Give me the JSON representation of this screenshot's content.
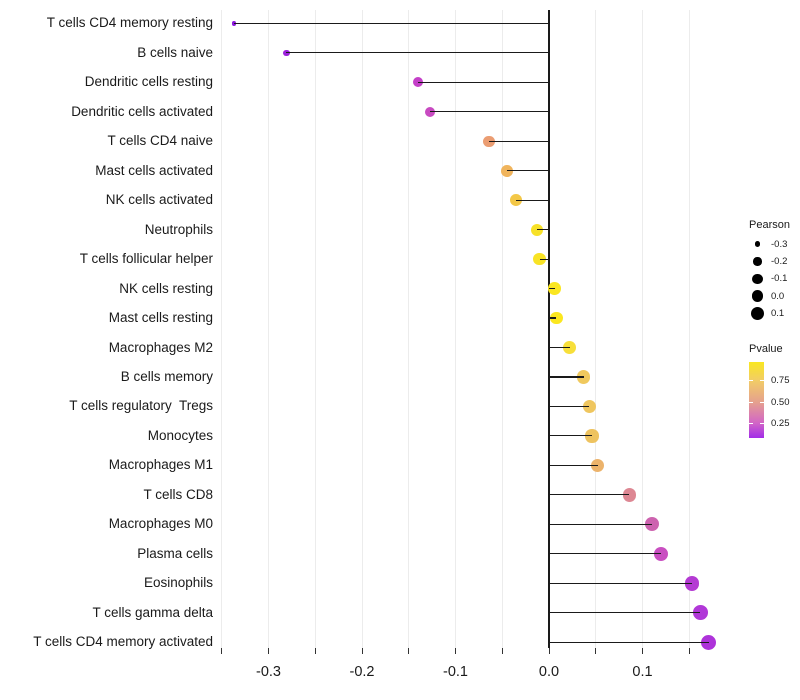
{
  "chart_data": {
    "type": "scatter",
    "variant": "lollipop",
    "title": "",
    "xlabel": "",
    "ylabel": "",
    "xlim": [
      -0.362,
      0.196
    ],
    "x_tick_labels": [
      "-0.3",
      "-0.2",
      "-0.1",
      "0.0",
      "0.1"
    ],
    "x_tick_values": [
      -0.3,
      -0.2,
      -0.1,
      0.0,
      0.1
    ],
    "x_gridline_values": [
      -0.35,
      -0.3,
      -0.25,
      -0.2,
      -0.15,
      -0.1,
      -0.05,
      0.0,
      0.05,
      0.1,
      0.15
    ],
    "grid": "vertical-only",
    "zero_line": 0.0,
    "points": [
      {
        "label": "T cells CD4 memory resting",
        "pearson": -0.337,
        "pvalue": 0.03,
        "color": "#8b17dd"
      },
      {
        "label": "B cells naive",
        "pearson": -0.281,
        "pvalue": 0.06,
        "color": "#9c20dc"
      },
      {
        "label": "Dendritic cells resting",
        "pearson": -0.14,
        "pvalue": 0.17,
        "color": "#c43fc8"
      },
      {
        "label": "Dendritic cells activated",
        "pearson": -0.127,
        "pvalue": 0.19,
        "color": "#c84ac1"
      },
      {
        "label": "T cells CD4 naive",
        "pearson": -0.064,
        "pvalue": 0.55,
        "color": "#eb9d72"
      },
      {
        "label": "Mast cells activated",
        "pearson": -0.045,
        "pvalue": 0.65,
        "color": "#f0b45c"
      },
      {
        "label": "NK cells activated",
        "pearson": -0.035,
        "pvalue": 0.74,
        "color": "#f3c747"
      },
      {
        "label": "Neutrophils",
        "pearson": -0.013,
        "pvalue": 0.88,
        "color": "#f7e128"
      },
      {
        "label": "T cells follicular helper",
        "pearson": -0.01,
        "pvalue": 0.9,
        "color": "#f8e325"
      },
      {
        "label": "NK cells resting",
        "pearson": 0.006,
        "pvalue": 0.93,
        "color": "#fae621"
      },
      {
        "label": "Mast cells resting",
        "pearson": 0.008,
        "pvalue": 0.95,
        "color": "#fbe71f"
      },
      {
        "label": "Macrophages M2",
        "pearson": 0.022,
        "pvalue": 0.86,
        "color": "#f7df3a"
      },
      {
        "label": "B cells memory",
        "pearson": 0.037,
        "pvalue": 0.75,
        "color": "#f0c95e"
      },
      {
        "label": "T cells regulatory  Tregs",
        "pearson": 0.043,
        "pvalue": 0.74,
        "color": "#efc65f"
      },
      {
        "label": "Monocytes",
        "pearson": 0.046,
        "pvalue": 0.73,
        "color": "#eec360"
      },
      {
        "label": "Macrophages M1",
        "pearson": 0.052,
        "pvalue": 0.66,
        "color": "#ecb36b"
      },
      {
        "label": "T cells CD8",
        "pearson": 0.086,
        "pvalue": 0.45,
        "color": "#dd8793"
      },
      {
        "label": "Macrophages M0",
        "pearson": 0.11,
        "pvalue": 0.28,
        "color": "#cd63af"
      },
      {
        "label": "Plasma cells",
        "pearson": 0.12,
        "pvalue": 0.22,
        "color": "#c94fc1"
      },
      {
        "label": "Eosinophils",
        "pearson": 0.153,
        "pvalue": 0.13,
        "color": "#b43ad3"
      },
      {
        "label": "T cells gamma delta",
        "pearson": 0.162,
        "pvalue": 0.12,
        "color": "#b138d8"
      },
      {
        "label": "T cells CD4 memory activated",
        "pearson": 0.171,
        "pvalue": 0.1,
        "color": "#ae33da"
      }
    ],
    "legend": {
      "size": {
        "title": "Pearson",
        "entry_labels": [
          "-0.3",
          "-0.2",
          "-0.1",
          "0.0",
          "0.1"
        ],
        "entry_values": [
          -0.3,
          -0.2,
          -0.1,
          0.0,
          0.1
        ],
        "dot_color": "#000000"
      },
      "color": {
        "title": "Pvalue",
        "tick_labels": [
          "0.75",
          "0.50",
          "0.25"
        ],
        "tick_values": [
          0.75,
          0.5,
          0.25
        ],
        "value_range": [
          0.08,
          0.96
        ],
        "gradient_top_to_bottom": [
          "#f9e721",
          "#f2cd66",
          "#e5a08e",
          "#d266c6",
          "#a22ce8"
        ]
      },
      "position": "right"
    },
    "colors": {
      "stem": "#1a1a1a",
      "zero_line": "#1a1a1a",
      "gridline": "#ececec",
      "axis_tick": "#333333",
      "axis_text": "#1a1a1a",
      "background": "#ffffff"
    }
  }
}
